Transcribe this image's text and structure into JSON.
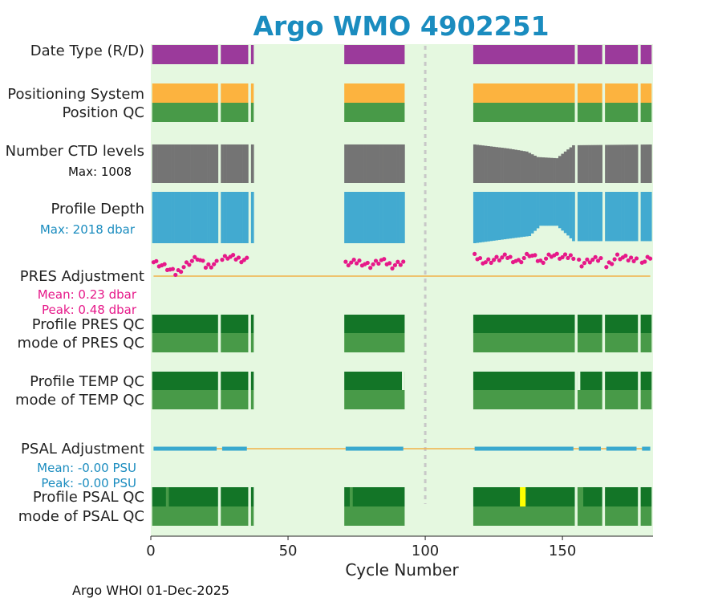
{
  "title": "Argo WMO 4902251",
  "footer": "Argo WHOI 01-Dec-2025",
  "colors": {
    "title": "#1a8cbf",
    "plot_bg": "#e5f8e0",
    "data_type": "#9b3a9b",
    "positioning": "#fcb33f",
    "qc_good": "#489a48",
    "qc_dark": "#137527",
    "ctd": "#747474",
    "depth": "#42aad0",
    "pres_adj": "#e61889",
    "psal_adj": "#39a9ce",
    "zero_line": "#f2b148",
    "flag_yellow": "#ffff00",
    "cycle_marker": "#c8c8c8",
    "max_text": "#111111",
    "depth_text": "#1a8cbf",
    "pres_text": "#e61889",
    "psal_text": "#1a8cbf"
  },
  "labels": {
    "data_type": "Date Type (R/D)",
    "positioning": "Positioning System",
    "position_qc": "Position QC",
    "ctd_levels": "Number CTD levels",
    "ctd_max": "Max: 1008",
    "profile_depth": "Profile Depth",
    "depth_max": "Max: 2018 dbar",
    "pres_adjustment": "PRES Adjustment",
    "pres_mean": "Mean: 0.23 dbar",
    "pres_peak": "Peak: 0.48 dbar",
    "profile_pres_qc": "Profile PRES QC",
    "mode_pres_qc": "mode of PRES QC",
    "profile_temp_qc": "Profile TEMP QC",
    "mode_temp_qc": "mode of TEMP QC",
    "psal_adjustment": "PSAL Adjustment",
    "psal_mean": "Mean: -0.00 PSU",
    "psal_peak": "Peak: -0.00 PSU",
    "profile_psal_qc": "Profile PSAL QC",
    "mode_psal_qc": "mode of PSAL QC"
  },
  "chart_data": {
    "type": "timeline",
    "title": "Argo WMO 4902251",
    "xlabel": "Cycle Number",
    "xlim": [
      0,
      183
    ],
    "xticks": [
      0,
      50,
      100,
      150
    ],
    "grid": false,
    "marker_cycle": 100,
    "max_ctd_levels": 1008,
    "max_profile_depth_dbar": 2018,
    "pres_adjustment": {
      "mean_dbar": 0.23,
      "peak_dbar": 0.48
    },
    "psal_adjustment": {
      "mean_psu": -0.0,
      "peak_psu": -0.0
    },
    "present_cycles": [
      [
        1,
        24
      ],
      [
        26,
        35
      ],
      [
        37,
        37
      ],
      [
        71,
        92
      ],
      [
        118,
        154
      ],
      [
        156,
        164
      ],
      [
        166,
        177
      ],
      [
        179,
        182
      ]
    ],
    "temp_qc_exceptions": [
      {
        "cycle": 92,
        "profile_qc": "missing"
      },
      {
        "cycle": 156,
        "profile_qc": "missing"
      }
    ],
    "psal_qc_exceptions": [
      {
        "cycle": 6,
        "profile_qc": "good"
      },
      {
        "cycle": 73,
        "profile_qc": "good"
      },
      {
        "cycle": 135,
        "profile_qc": "flag-yellow"
      },
      {
        "cycle": 136,
        "profile_qc": "flag-yellow"
      },
      {
        "cycle": 156,
        "profile_qc": "good"
      },
      {
        "cycle": 157,
        "profile_qc": "good"
      }
    ],
    "ctd_levels_fraction": [
      [
        118,
        0.98
      ],
      [
        124,
        0.93
      ],
      [
        130,
        0.88
      ],
      [
        137,
        0.8
      ],
      [
        141,
        0.66
      ],
      [
        148,
        0.63
      ],
      [
        151,
        0.8
      ],
      [
        154,
        0.96
      ],
      [
        183,
        0.98
      ]
    ],
    "profile_depth_fraction": [
      [
        1,
        1.0
      ],
      [
        118,
        1.0
      ],
      [
        128,
        0.93
      ],
      [
        138,
        0.86
      ],
      [
        142,
        0.66
      ],
      [
        148,
        0.66
      ],
      [
        152,
        0.85
      ],
      [
        154,
        0.96
      ],
      [
        183,
        0.96
      ]
    ],
    "pres_adjustment_dbar": [
      [
        1,
        0.3
      ],
      [
        5,
        0.2
      ],
      [
        9,
        0.05
      ],
      [
        13,
        0.25
      ],
      [
        17,
        0.38
      ],
      [
        20,
        0.2
      ],
      [
        24,
        0.28
      ],
      [
        28,
        0.4
      ],
      [
        33,
        0.35
      ],
      [
        71,
        0.25
      ],
      [
        76,
        0.3
      ],
      [
        80,
        0.22
      ],
      [
        84,
        0.32
      ],
      [
        88,
        0.22
      ],
      [
        92,
        0.3
      ],
      [
        118,
        0.4
      ],
      [
        122,
        0.3
      ],
      [
        126,
        0.35
      ],
      [
        130,
        0.4
      ],
      [
        134,
        0.3
      ],
      [
        138,
        0.45
      ],
      [
        142,
        0.3
      ],
      [
        146,
        0.45
      ],
      [
        150,
        0.38
      ],
      [
        154,
        0.42
      ],
      [
        157,
        0.25
      ],
      [
        160,
        0.32
      ],
      [
        164,
        0.35
      ],
      [
        166,
        0.2
      ],
      [
        170,
        0.4
      ],
      [
        174,
        0.35
      ],
      [
        177,
        0.38
      ],
      [
        180,
        0.3
      ],
      [
        182,
        0.4
      ]
    ]
  }
}
